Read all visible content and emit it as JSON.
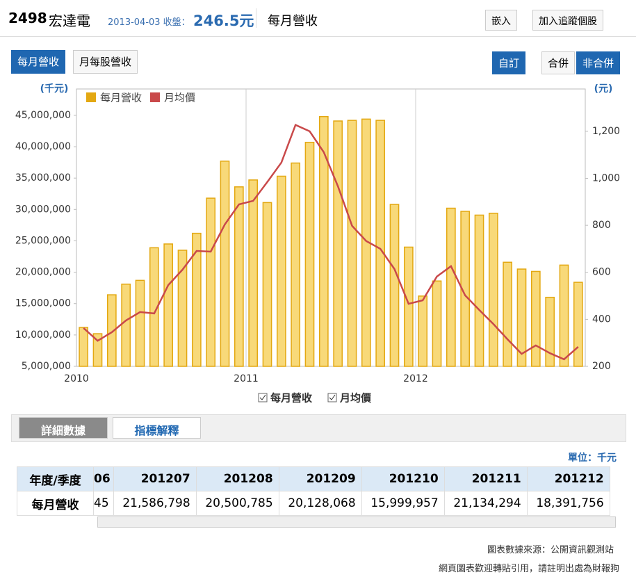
{
  "header": {
    "code": "2498",
    "name": "宏達電",
    "date": "2013-04-03 收盤：",
    "price": "246.5元",
    "page": "每月營收",
    "embed": "嵌入",
    "track": "加入追蹤個股"
  },
  "tabs": [
    "每月營收",
    "月每股營收"
  ],
  "controls": {
    "custom": "自訂",
    "merged": "合併",
    "unmerged": "非合併"
  },
  "chart_data": {
    "type": "bar_line",
    "y_unit": "(千元)",
    "y2_unit": "(元)",
    "categories": [
      "2010",
      null,
      null,
      null,
      null,
      null,
      null,
      null,
      null,
      null,
      null,
      null,
      "2011",
      null,
      null,
      null,
      null,
      null,
      null,
      null,
      null,
      null,
      null,
      null,
      "2012",
      null,
      null,
      null,
      null,
      null,
      null,
      null,
      null,
      null,
      null,
      null
    ],
    "series": [
      {
        "name": "每月營收",
        "color": "#e3a812",
        "values": [
          11200000,
          10200000,
          16400000,
          18100000,
          18700000,
          23900000,
          24500000,
          23500000,
          26200000,
          31800000,
          37700000,
          33600000,
          34700000,
          31100000,
          35300000,
          37400000,
          40700000,
          44800000,
          44100000,
          44200000,
          44400000,
          44200000,
          30800000,
          24000000,
          16200000,
          18600000,
          30200000,
          29700000,
          29100000,
          29400000,
          21586798,
          20500785,
          20128068,
          15999957,
          21134294,
          18391756
        ]
      },
      {
        "name": "月均價",
        "color": "#c9494a",
        "axis": "y2",
        "values": [
          363,
          309,
          345,
          395,
          431,
          425,
          546,
          611,
          691,
          688,
          804,
          889,
          904,
          984,
          1067,
          1227,
          1200,
          1111,
          966,
          798,
          733,
          700,
          614,
          466,
          481,
          582,
          626,
          502,
          440,
          380,
          315,
          253,
          289,
          256,
          230,
          283
        ]
      }
    ],
    "ylim": [
      5000000,
      49200000
    ],
    "yticks": [
      {
        "value": 5000000,
        "label": "5,000,000"
      },
      {
        "value": 10000000,
        "label": "10,000,000"
      },
      {
        "value": 15000000,
        "label": "15,000,000"
      },
      {
        "value": 20000000,
        "label": "20,000,000"
      },
      {
        "value": 25000000,
        "label": "25,000,000"
      },
      {
        "value": 30000000,
        "label": "30,000,000"
      },
      {
        "value": 35000000,
        "label": "35,000,000"
      },
      {
        "value": 40000000,
        "label": "40,000,000"
      },
      {
        "value": 45000000,
        "label": "45,000,000"
      }
    ],
    "y2lim": [
      200,
      1380
    ],
    "y2ticks": [
      200,
      400,
      600,
      800,
      {
        "value": 1000,
        "label": "1,000"
      },
      {
        "value": 1200,
        "label": "1,200"
      }
    ],
    "grid": true,
    "legend": "top-left"
  },
  "detail_tabs": [
    "詳細數據",
    "指標解釋"
  ],
  "unit": "單位：千元",
  "table": {
    "columns": [
      "年度/季度",
      "06",
      "201207",
      "201208",
      "201209",
      "201210",
      "201211",
      "201212"
    ],
    "rows": [
      [
        "每月營收",
        "45",
        "21,586,798",
        "20,500,785",
        "20,128,068",
        "15,999,957",
        "21,134,294",
        "18,391,756"
      ]
    ]
  },
  "footer": [
    "圖表數據來源：公開資訊觀測站",
    "網頁圖表歡迎轉貼引用，請註明出處為財報狗"
  ]
}
